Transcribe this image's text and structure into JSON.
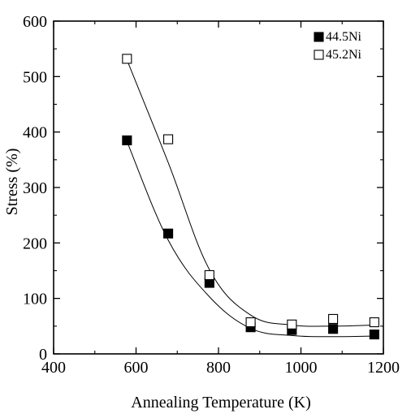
{
  "chart_data": {
    "type": "scatter",
    "xlabel": "Annealing Temperature (K)",
    "ylabel": "Stress  (%)",
    "xlim": [
      400,
      1200
    ],
    "ylim": [
      0,
      600
    ],
    "xticks": [
      400,
      600,
      800,
      1000,
      1200
    ],
    "yticks": [
      0,
      100,
      200,
      300,
      400,
      500,
      600
    ],
    "grid": false,
    "legend_position": "top-right",
    "series": [
      {
        "name": "44.5Ni",
        "marker": "filled-square",
        "color": "#000000",
        "x": [
          578,
          678,
          778,
          878,
          978,
          1078,
          1178
        ],
        "y": [
          385,
          217,
          128,
          48,
          43,
          45,
          35
        ],
        "fit_line": true
      },
      {
        "name": "45.2Ni",
        "marker": "open-square",
        "color": "#000000",
        "x": [
          578,
          678,
          778,
          878,
          978,
          1078,
          1178
        ],
        "y": [
          532,
          387,
          142,
          57,
          53,
          63,
          57
        ],
        "fit_line": true
      }
    ]
  }
}
